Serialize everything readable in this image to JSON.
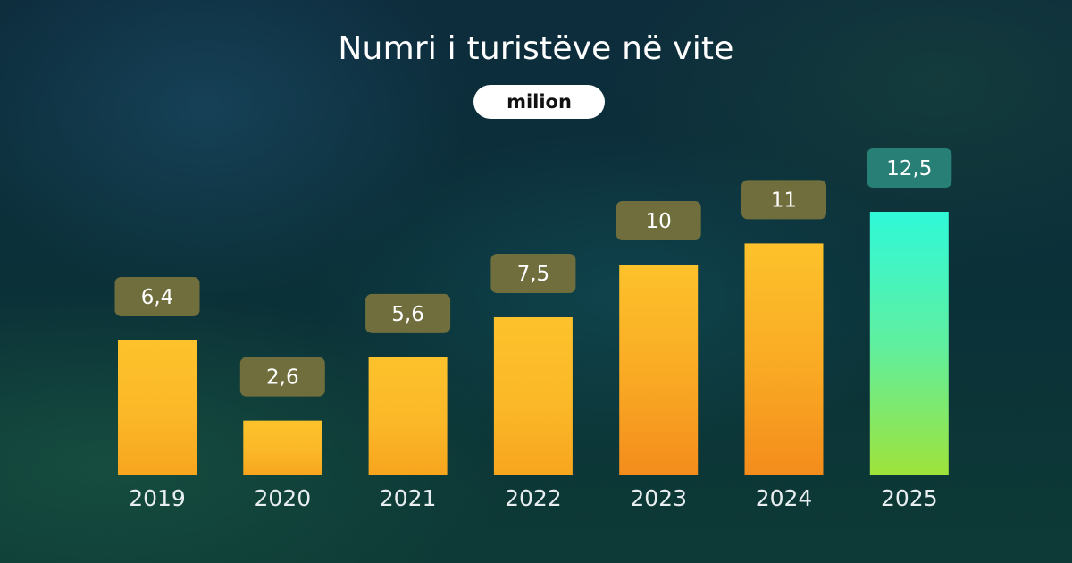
{
  "chart_data": {
    "type": "bar",
    "title": "Numri i turistëve në vite",
    "unit_label": "milion",
    "categories": [
      "2019",
      "2020",
      "2021",
      "2022",
      "2023",
      "2024",
      "2025"
    ],
    "values": [
      6.4,
      2.6,
      5.6,
      7.5,
      10,
      11,
      12.5
    ],
    "value_labels": [
      "6,4",
      "2,6",
      "5,6",
      "7,5",
      "10",
      "11",
      "12,5"
    ],
    "highlight_category": "2025",
    "xlabel": "",
    "ylabel": "",
    "grid": false,
    "legend": "none",
    "colors": {
      "bar_top": "#fdc22b",
      "bar_bottom": "#f7a51e",
      "bar_bottom_tall": "#f48c1c",
      "highlight_top": "#2ff9d8",
      "highlight_bottom": "#9fe33a",
      "label_bg": "#6f6e3c",
      "highlight_label_bg": "#277f75",
      "text": "#ffffff"
    }
  }
}
